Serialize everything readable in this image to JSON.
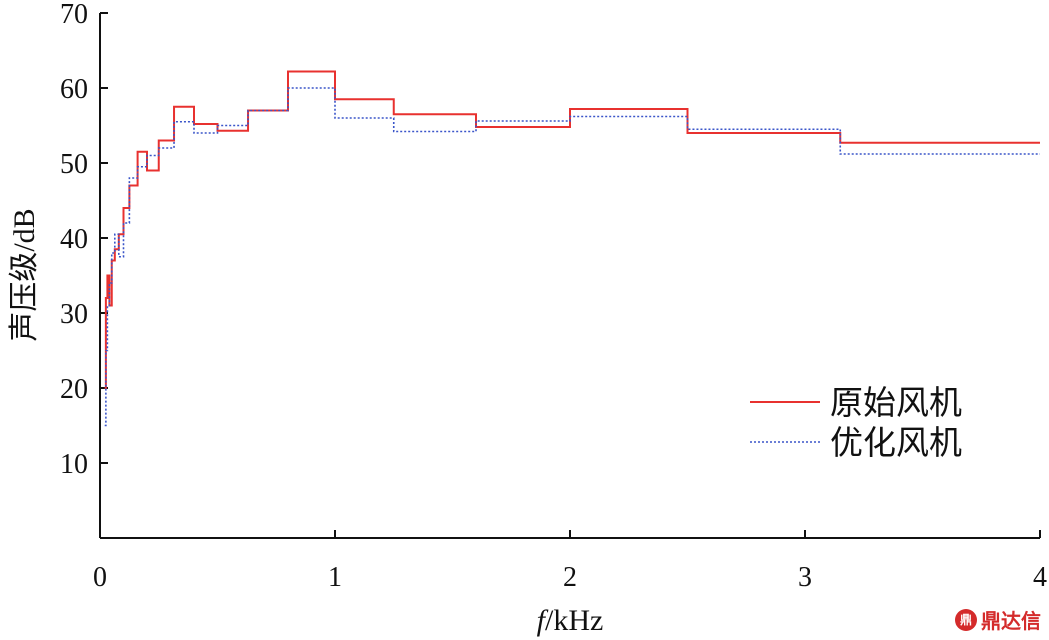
{
  "chart_data": {
    "type": "line",
    "step": true,
    "xlabel_italic": "f",
    "xlabel_rest": "/kHz",
    "ylabel": "声压级/dB",
    "xlim": [
      0,
      4
    ],
    "ylim": [
      0,
      70
    ],
    "xticks": [
      "0",
      "1",
      "2",
      "3",
      "4"
    ],
    "yticks": [
      "10",
      "20",
      "30",
      "40",
      "50",
      "60",
      "70"
    ],
    "grid": false,
    "legend_position": "lower-right",
    "series": [
      {
        "name": "原始风机",
        "color": "#e8312f",
        "style": "solid",
        "edges": [
          0.02,
          0.025,
          0.0315,
          0.04,
          0.05,
          0.063,
          0.08,
          0.1,
          0.125,
          0.16,
          0.2,
          0.25,
          0.315,
          0.4,
          0.5,
          0.63,
          0.8,
          1.0,
          1.25,
          1.6,
          2.0,
          2.5,
          3.15,
          4.0
        ],
        "values": [
          20,
          32,
          35,
          31,
          37,
          38.5,
          40.5,
          44,
          47,
          51.5,
          49,
          53,
          57.5,
          55.2,
          54.3,
          57,
          62.2,
          58.5,
          56.5,
          54.8,
          57.2,
          54,
          52.7
        ]
      },
      {
        "name": "优化风机",
        "color": "#3a55c9",
        "style": "dotted",
        "edges": [
          0.02,
          0.025,
          0.0315,
          0.04,
          0.05,
          0.063,
          0.08,
          0.1,
          0.125,
          0.16,
          0.2,
          0.25,
          0.315,
          0.4,
          0.5,
          0.63,
          0.8,
          1.0,
          1.25,
          1.6,
          2.0,
          2.5,
          3.15,
          4.0
        ],
        "values": [
          15,
          25,
          31,
          34,
          38,
          40.5,
          37.5,
          42,
          48,
          49.5,
          51,
          52,
          55.5,
          54,
          55,
          57,
          60,
          56,
          54.2,
          55.6,
          56.2,
          54.5,
          51.2
        ]
      }
    ]
  },
  "watermark": {
    "logo": "鼎",
    "text": "鼎达信"
  }
}
